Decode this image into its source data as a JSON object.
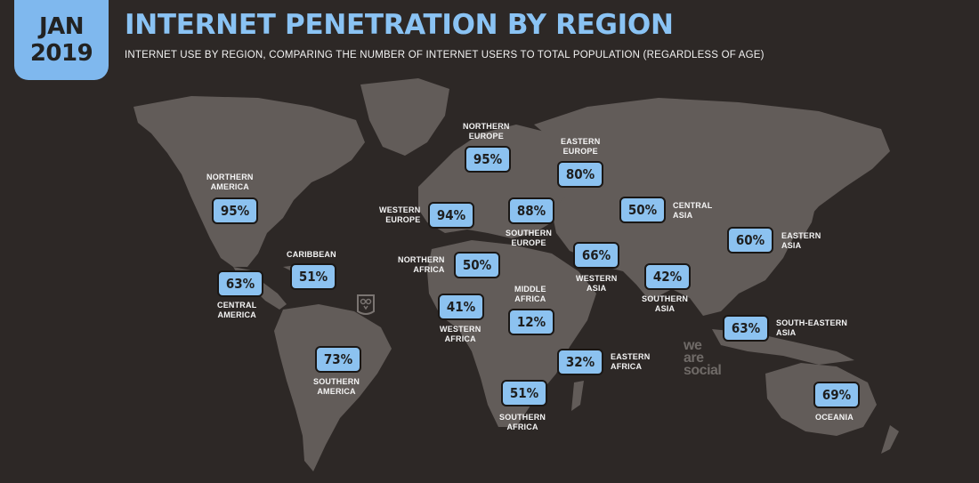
{
  "header": {
    "month": "JAN",
    "year": "2019",
    "title": "INTERNET PENETRATION BY REGION",
    "subtitle": "INTERNET USE BY REGION, COMPARING THE NUMBER OF INTERNET USERS TO TOTAL POPULATION (REGARDLESS OF AGE)"
  },
  "colors": {
    "background": "#2d2826",
    "land": "#625c59",
    "accent": "#8cc2f0",
    "date_badge": "#7fb8ee"
  },
  "regions": [
    {
      "id": "northern-america",
      "name": "NORTHERN\nAMERICA",
      "value": "95%"
    },
    {
      "id": "caribbean",
      "name": "CARIBBEAN",
      "value": "51%"
    },
    {
      "id": "central-america",
      "name": "CENTRAL\nAMERICA",
      "value": "63%"
    },
    {
      "id": "southern-america",
      "name": "SOUTHERN\nAMERICA",
      "value": "73%"
    },
    {
      "id": "northern-europe",
      "name": "NORTHERN\nEUROPE",
      "value": "95%"
    },
    {
      "id": "eastern-europe",
      "name": "EASTERN\nEUROPE",
      "value": "80%"
    },
    {
      "id": "western-europe",
      "name": "WESTERN\nEUROPE",
      "value": "94%"
    },
    {
      "id": "southern-europe",
      "name": "SOUTHERN\nEUROPE",
      "value": "88%"
    },
    {
      "id": "central-asia",
      "name": "CENTRAL\nASIA",
      "value": "50%"
    },
    {
      "id": "eastern-asia",
      "name": "EASTERN\nASIA",
      "value": "60%"
    },
    {
      "id": "northern-africa",
      "name": "NORTHERN\nAFRICA",
      "value": "50%"
    },
    {
      "id": "western-asia",
      "name": "WESTERN\nASIA",
      "value": "66%"
    },
    {
      "id": "southern-asia",
      "name": "SOUTHERN\nASIA",
      "value": "42%"
    },
    {
      "id": "middle-africa",
      "name": "MIDDLE\nAFRICA",
      "value": "12%"
    },
    {
      "id": "western-africa",
      "name": "WESTERN\nAFRICA",
      "value": "41%"
    },
    {
      "id": "south-eastern-asia",
      "name": "SOUTH-EASTERN\nASIA",
      "value": "63%"
    },
    {
      "id": "eastern-africa",
      "name": "EASTERN\nAFRICA",
      "value": "32%"
    },
    {
      "id": "southern-africa",
      "name": "SOUTHERN\nAFRICA",
      "value": "51%"
    },
    {
      "id": "oceania",
      "name": "OCEANIA",
      "value": "69%"
    }
  ],
  "logo": {
    "line1": "we",
    "line2": "are",
    "line3": "social"
  }
}
